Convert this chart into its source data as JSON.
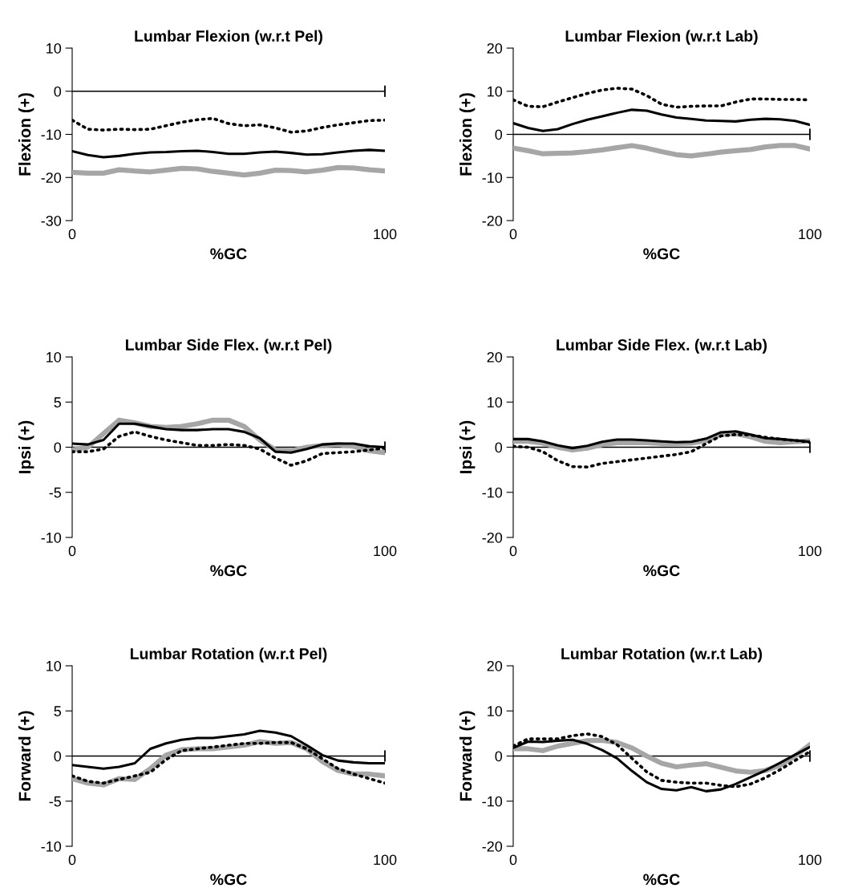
{
  "chart_data": [
    {
      "type": "line",
      "title": "Lumbar Flexion (w.r.t Pel)",
      "xlabel": "%GC",
      "ylabel": "Flexion (+)",
      "x": [
        0,
        5,
        10,
        15,
        20,
        25,
        30,
        35,
        40,
        45,
        50,
        55,
        60,
        65,
        70,
        75,
        80,
        85,
        90,
        95,
        100
      ],
      "xlim": [
        0,
        100
      ],
      "xticks": [
        0,
        100
      ],
      "ylim": [
        -30,
        10
      ],
      "yticks": [
        -30,
        -20,
        -10,
        0,
        10
      ],
      "ref_lines": [
        {
          "axis": "y",
          "value": 0,
          "color": "#000000"
        }
      ],
      "series": [
        {
          "color": "#a6a6a6",
          "line_style": "solid",
          "values": [
            -18.8,
            -19,
            -19,
            -18.2,
            -18.5,
            -18.7,
            -18.3,
            -17.9,
            -18,
            -18.6,
            -19,
            -19.4,
            -19,
            -18.3,
            -18.4,
            -18.7,
            -18.3,
            -17.7,
            -17.8,
            -18.2,
            -18.5
          ]
        },
        {
          "color": "#000000",
          "line_style": "solid",
          "values": [
            -13.9,
            -14.8,
            -15.3,
            -15,
            -14.5,
            -14.2,
            -14.1,
            -13.9,
            -13.8,
            -14.1,
            -14.5,
            -14.5,
            -14.2,
            -14,
            -14.3,
            -14.7,
            -14.6,
            -14.2,
            -13.8,
            -13.6,
            -13.8
          ]
        },
        {
          "color": "#000000",
          "line_style": "dotted",
          "values": [
            -6.7,
            -8.8,
            -9,
            -8.8,
            -8.9,
            -8.8,
            -8,
            -7.2,
            -6.6,
            -6.3,
            -7.5,
            -8,
            -7.8,
            -8.5,
            -9.5,
            -9.2,
            -8.4,
            -7.8,
            -7.3,
            -6.8,
            -6.7
          ]
        }
      ]
    },
    {
      "type": "line",
      "title": "Lumbar Flexion (w.r.t Lab)",
      "xlabel": "%GC",
      "ylabel": "Flexion (+)",
      "x": [
        0,
        5,
        10,
        15,
        20,
        25,
        30,
        35,
        40,
        45,
        50,
        55,
        60,
        65,
        70,
        75,
        80,
        85,
        90,
        95,
        100
      ],
      "xlim": [
        0,
        100
      ],
      "xticks": [
        0,
        100
      ],
      "ylim": [
        -20,
        20
      ],
      "yticks": [
        -20,
        -10,
        0,
        10,
        20
      ],
      "ref_lines": [
        {
          "axis": "y",
          "value": 0,
          "color": "#000000"
        }
      ],
      "series": [
        {
          "color": "#a6a6a6",
          "line_style": "solid",
          "values": [
            -3.2,
            -3.8,
            -4.5,
            -4.4,
            -4.3,
            -4,
            -3.6,
            -3.1,
            -2.6,
            -3.2,
            -4,
            -4.7,
            -5,
            -4.6,
            -4.1,
            -3.8,
            -3.5,
            -2.9,
            -2.6,
            -2.6,
            -3.4
          ]
        },
        {
          "color": "#000000",
          "line_style": "solid",
          "values": [
            2.6,
            1.5,
            0.8,
            1.2,
            2.4,
            3.4,
            4.2,
            5,
            5.7,
            5.5,
            4.6,
            3.9,
            3.6,
            3.2,
            3.1,
            3,
            3.4,
            3.6,
            3.5,
            3.1,
            2.2
          ]
        },
        {
          "color": "#000000",
          "line_style": "dotted",
          "values": [
            8,
            6.5,
            6.4,
            7.5,
            8.5,
            9.5,
            10.3,
            10.7,
            10.5,
            9,
            7,
            6.3,
            6.5,
            6.6,
            6.6,
            7.5,
            8.2,
            8.2,
            8.1,
            8.1,
            8
          ]
        }
      ]
    },
    {
      "type": "line",
      "title": "Lumbar Side Flex. (w.r.t Pel)",
      "xlabel": "%GC",
      "ylabel": "Ipsi (+)",
      "x": [
        0,
        5,
        10,
        15,
        20,
        25,
        30,
        35,
        40,
        45,
        50,
        55,
        60,
        65,
        70,
        75,
        80,
        85,
        90,
        95,
        100
      ],
      "xlim": [
        0,
        100
      ],
      "xticks": [
        0,
        100
      ],
      "ylim": [
        -10,
        10
      ],
      "yticks": [
        -10,
        -5,
        0,
        5,
        10
      ],
      "ref_lines": [
        {
          "axis": "y",
          "value": 0,
          "color": "#000000"
        }
      ],
      "series": [
        {
          "color": "#a6a6a6",
          "line_style": "solid",
          "values": [
            -0.3,
            0,
            1.5,
            3,
            2.7,
            2.3,
            2.2,
            2.3,
            2.6,
            3,
            3,
            2.3,
            0.8,
            -0.3,
            -0.4,
            0,
            0.2,
            0.3,
            0.1,
            -0.4,
            -0.6
          ]
        },
        {
          "color": "#000000",
          "line_style": "solid",
          "values": [
            0.4,
            0.3,
            0.8,
            2.6,
            2.6,
            2.3,
            2,
            1.9,
            1.9,
            2,
            2,
            1.7,
            1,
            -0.5,
            -0.6,
            -0.2,
            0.3,
            0.4,
            0.4,
            0.1,
            0
          ]
        },
        {
          "color": "#000000",
          "line_style": "dotted",
          "values": [
            -0.5,
            -0.5,
            -0.2,
            1.2,
            1.7,
            1.2,
            0.8,
            0.5,
            0.2,
            0.2,
            0.3,
            0.2,
            -0.2,
            -1.2,
            -2,
            -1.5,
            -0.7,
            -0.6,
            -0.5,
            -0.3,
            -0.1
          ]
        }
      ]
    },
    {
      "type": "line",
      "title": "Lumbar Side Flex. (w.r.t Lab)",
      "xlabel": "%GC",
      "ylabel": "Ipsi (+)",
      "x": [
        0,
        5,
        10,
        15,
        20,
        25,
        30,
        35,
        40,
        45,
        50,
        55,
        60,
        65,
        70,
        75,
        80,
        85,
        90,
        95,
        100
      ],
      "xlim": [
        0,
        100
      ],
      "xticks": [
        0,
        100
      ],
      "ylim": [
        -20,
        20
      ],
      "yticks": [
        -20,
        -10,
        0,
        10,
        20
      ],
      "ref_lines": [
        {
          "axis": "y",
          "value": 0,
          "color": "#000000"
        }
      ],
      "series": [
        {
          "color": "#a6a6a6",
          "line_style": "solid",
          "values": [
            1.3,
            1.3,
            0.9,
            0,
            -0.6,
            -0.2,
            0.6,
            1,
            1,
            1,
            0.8,
            0.8,
            0.9,
            1.5,
            2.8,
            3,
            2.3,
            1.3,
            1,
            1.2,
            1.4
          ]
        },
        {
          "color": "#000000",
          "line_style": "solid",
          "values": [
            1.8,
            1.8,
            1.3,
            0.4,
            -0.2,
            0.3,
            1.2,
            1.7,
            1.7,
            1.5,
            1.3,
            1.1,
            1.2,
            1.9,
            3.3,
            3.5,
            2.8,
            2,
            1.8,
            1.5,
            1.2
          ]
        },
        {
          "color": "#000000",
          "line_style": "dotted",
          "values": [
            0.2,
            0,
            -1,
            -3,
            -4.3,
            -4.4,
            -3.6,
            -3.2,
            -2.8,
            -2.4,
            -2,
            -1.6,
            -1,
            0.8,
            2.5,
            2.8,
            2.7,
            2.2,
            1.8,
            1.5,
            1.1
          ]
        }
      ]
    },
    {
      "type": "line",
      "title": "Lumbar Rotation (w.r.t Pel)",
      "xlabel": "%GC",
      "ylabel": "Forward (+)",
      "x": [
        0,
        5,
        10,
        15,
        20,
        25,
        30,
        35,
        40,
        45,
        50,
        55,
        60,
        65,
        70,
        75,
        80,
        85,
        90,
        95,
        100
      ],
      "xlim": [
        0,
        100
      ],
      "xticks": [
        0,
        100
      ],
      "ylim": [
        -10,
        10
      ],
      "yticks": [
        -10,
        -5,
        0,
        5,
        10
      ],
      "ref_lines": [
        {
          "axis": "y",
          "value": 0,
          "color": "#000000"
        }
      ],
      "series": [
        {
          "color": "#a6a6a6",
          "line_style": "solid",
          "values": [
            -2.5,
            -3,
            -3.2,
            -2.5,
            -2.6,
            -1.4,
            0.1,
            0.7,
            0.8,
            0.8,
            1,
            1.2,
            1.6,
            1.4,
            1.5,
            0.8,
            -0.6,
            -1.6,
            -2,
            -2,
            -2.2
          ]
        },
        {
          "color": "#000000",
          "line_style": "solid",
          "values": [
            -1,
            -1.2,
            -1.4,
            -1.2,
            -0.8,
            0.8,
            1.4,
            1.8,
            2,
            2,
            2.2,
            2.4,
            2.8,
            2.6,
            2.2,
            1.2,
            0.1,
            -0.5,
            -0.7,
            -0.8,
            -0.8
          ]
        },
        {
          "color": "#000000",
          "line_style": "dotted",
          "values": [
            -2.2,
            -2.8,
            -3,
            -2.6,
            -2.2,
            -1.8,
            -0.4,
            0.6,
            0.8,
            1,
            1.2,
            1.4,
            1.4,
            1.5,
            1.5,
            0.8,
            -0.3,
            -1.4,
            -2,
            -2.5,
            -3
          ]
        }
      ]
    },
    {
      "type": "line",
      "title": "Lumbar Rotation (w.r.t Lab)",
      "xlabel": "%GC",
      "ylabel": "Forward (+)",
      "x": [
        0,
        5,
        10,
        15,
        20,
        25,
        30,
        35,
        40,
        45,
        50,
        55,
        60,
        65,
        70,
        75,
        80,
        85,
        90,
        95,
        100
      ],
      "xlim": [
        0,
        100
      ],
      "xticks": [
        0,
        100
      ],
      "ylim": [
        -20,
        20
      ],
      "yticks": [
        -20,
        -10,
        0,
        10,
        20
      ],
      "ref_lines": [
        {
          "axis": "y",
          "value": 0,
          "color": "#000000"
        }
      ],
      "series": [
        {
          "color": "#a6a6a6",
          "line_style": "solid",
          "values": [
            1.6,
            1.6,
            1.2,
            2.2,
            2.8,
            3.4,
            3.5,
            3,
            1.8,
            0,
            -1.6,
            -2.4,
            -2,
            -1.7,
            -2.5,
            -3.3,
            -3.6,
            -3.2,
            -2,
            0,
            2.5
          ]
        },
        {
          "color": "#000000",
          "line_style": "solid",
          "values": [
            1.8,
            3.2,
            3.1,
            3.4,
            3.6,
            2.7,
            1.3,
            -0.5,
            -3.3,
            -5.8,
            -7.3,
            -7.6,
            -6.9,
            -7.8,
            -7.4,
            -6.2,
            -4.7,
            -3.2,
            -1.5,
            0.3,
            2
          ]
        },
        {
          "color": "#000000",
          "line_style": "dotted",
          "values": [
            2.2,
            3.8,
            3.8,
            3.8,
            4.5,
            4.9,
            4.3,
            2.5,
            -0.5,
            -3.5,
            -5.4,
            -5.8,
            -6,
            -6,
            -6.5,
            -6.8,
            -6.2,
            -4.8,
            -3,
            -1,
            1
          ]
        }
      ]
    }
  ]
}
